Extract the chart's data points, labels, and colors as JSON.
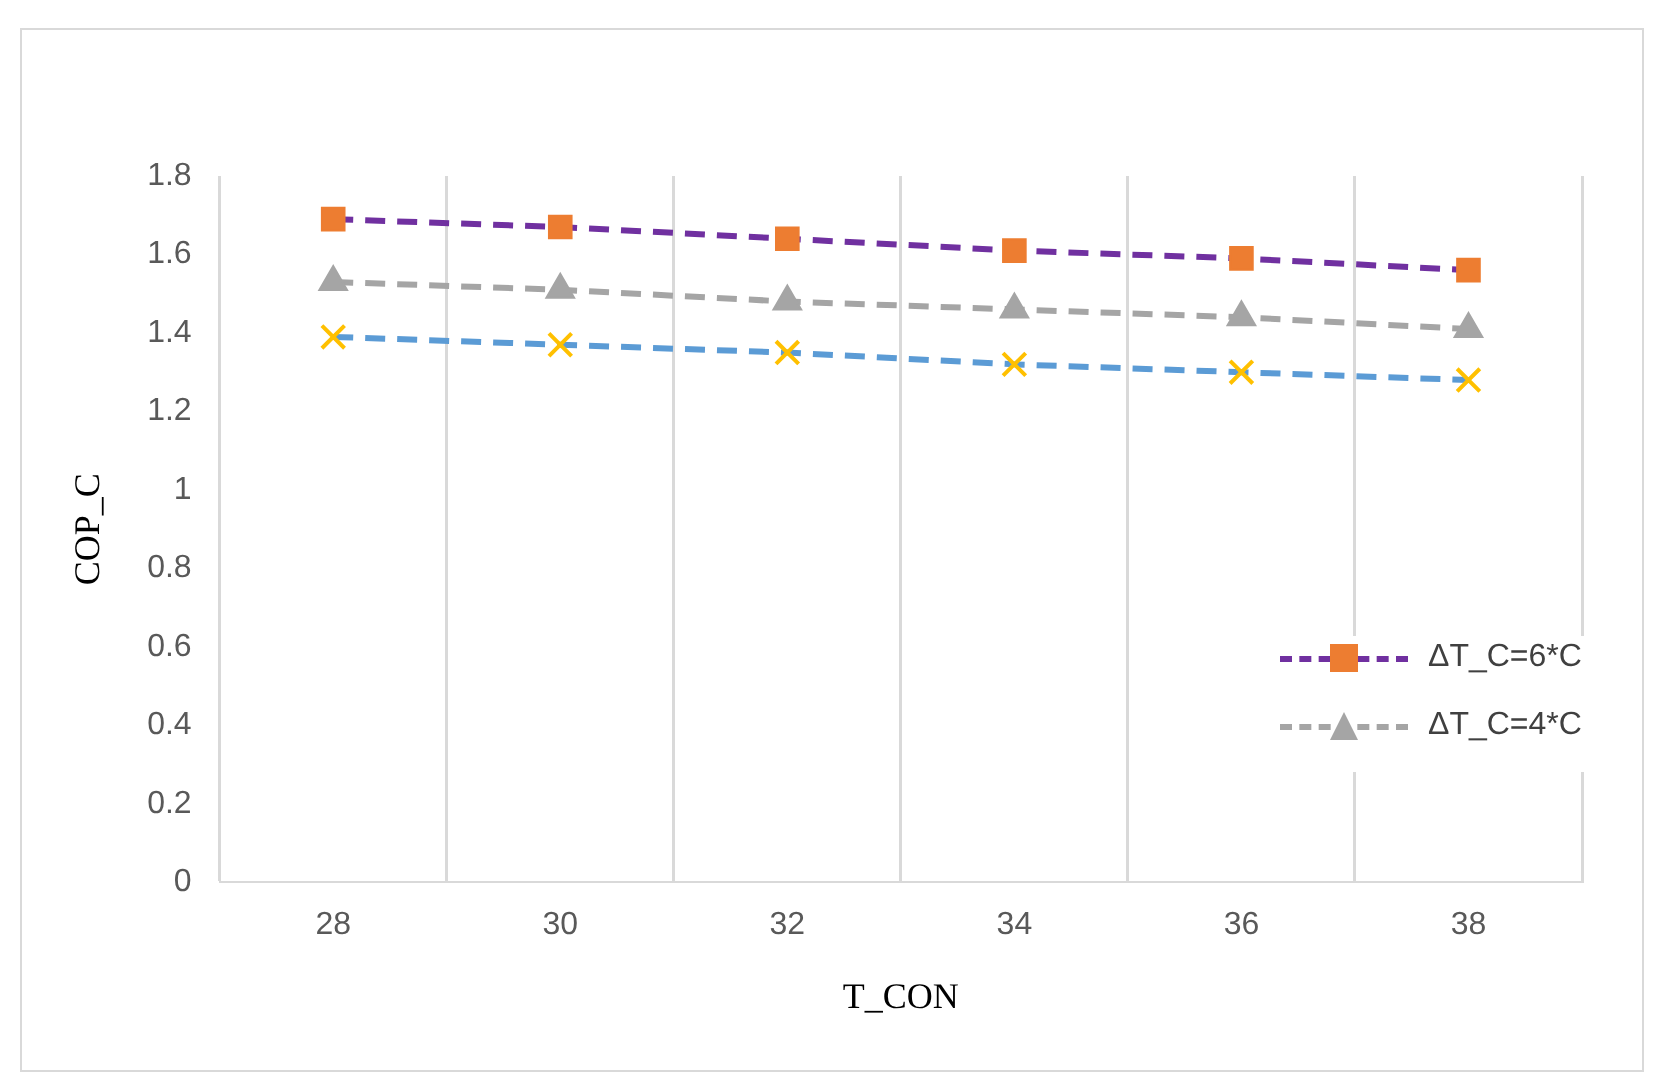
{
  "chart_data": {
    "type": "line",
    "xlabel": "T_CON",
    "ylabel": "COP_C",
    "categories": [
      "28",
      "30",
      "32",
      "34",
      "36",
      "38"
    ],
    "ylim": [
      0,
      1.8
    ],
    "yticks": [
      0,
      0.2,
      0.4,
      0.6,
      0.8,
      1,
      1.2,
      1.4,
      1.6,
      1.8
    ],
    "grid": "x",
    "legend": "right",
    "series": [
      {
        "name": "ΔT_C=6*C",
        "color": "#7030a0",
        "colors": [
          "#ed7d31",
          "#ed7d31",
          "#ed7d31",
          "#ed7d31",
          "#ed7d31",
          "#ed7d31"
        ],
        "marker": "square",
        "line_style": "dashed",
        "values": [
          1.69,
          1.67,
          1.64,
          1.61,
          1.59,
          1.56
        ]
      },
      {
        "name": "ΔT_C=4*C",
        "color": "#a5a5a5",
        "colors": [
          "#a5a5a5",
          "#a5a5a5",
          "#a5a5a5",
          "#a5a5a5",
          "#a5a5a5",
          "#a5a5a5"
        ],
        "marker": "triangle",
        "line_style": "dashed",
        "values": [
          1.53,
          1.51,
          1.48,
          1.46,
          1.44,
          1.41
        ]
      },
      {
        "color": "#5b9bd5",
        "colors": [
          "#ffc000",
          "#ffc000",
          "#ffc000",
          "#ffc000",
          "#ffc000",
          "#ffc000"
        ],
        "marker": "cross",
        "line_style": "dashed",
        "values": [
          1.39,
          1.37,
          1.35,
          1.32,
          1.3,
          1.28
        ]
      }
    ]
  }
}
